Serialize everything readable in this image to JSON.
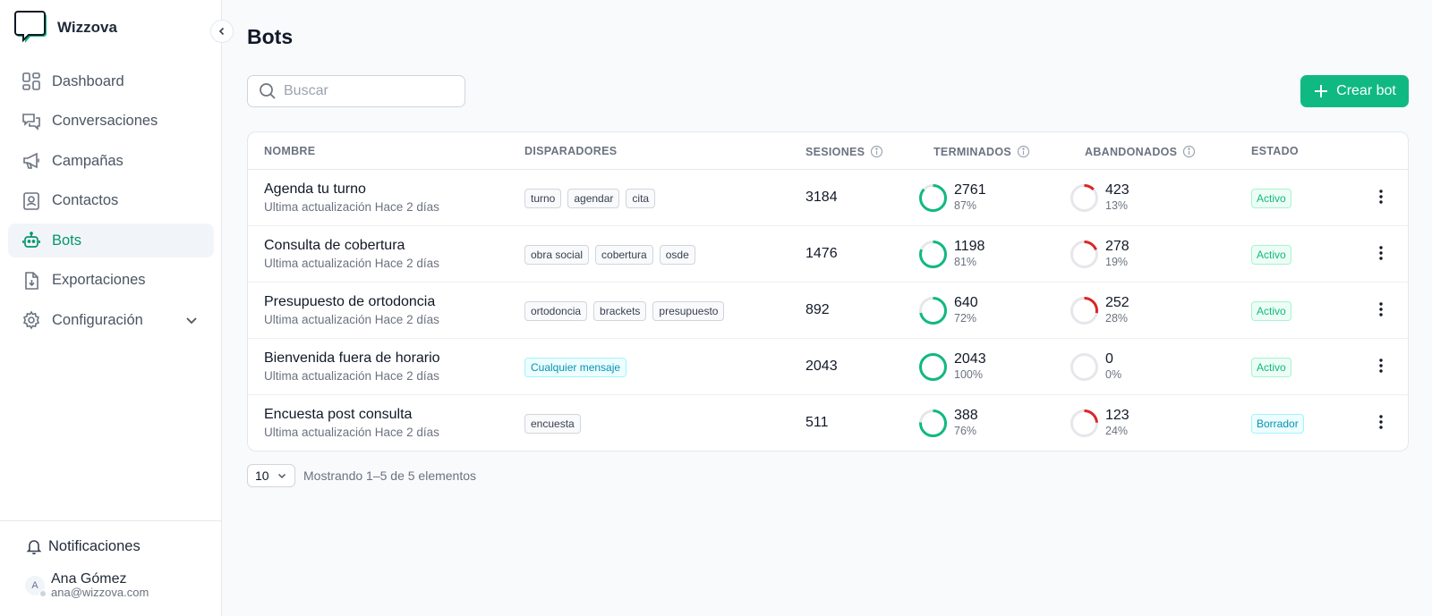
{
  "app": {
    "name": "Wizzova"
  },
  "sidebar": {
    "items": [
      {
        "label": "Dashboard",
        "icon": "dashboard-icon",
        "active": false
      },
      {
        "label": "Conversaciones",
        "icon": "chat-icon",
        "active": false
      },
      {
        "label": "Campañas",
        "icon": "megaphone-icon",
        "active": false
      },
      {
        "label": "Contactos",
        "icon": "contacts-icon",
        "active": false
      },
      {
        "label": "Bots",
        "icon": "bot-icon",
        "active": true
      },
      {
        "label": "Exportaciones",
        "icon": "export-icon",
        "active": false
      },
      {
        "label": "Configuración",
        "icon": "gear-icon",
        "active": false
      }
    ],
    "notifications_label": "Notificaciones",
    "user": {
      "initial": "A",
      "name": "Ana Gómez",
      "email": "ana@wizzova.com"
    }
  },
  "page": {
    "title": "Bots"
  },
  "search": {
    "placeholder": "Buscar"
  },
  "create_button": {
    "label": "Crear bot"
  },
  "table": {
    "headers": {
      "nombre": "NOMBRE",
      "disparadores": "DISPARADORES",
      "sesiones": "SESIONES",
      "terminados": "TERMINADOS",
      "abandonados": "ABANDONADOS",
      "estado": "ESTADO"
    },
    "rows": [
      {
        "name": "Agenda tu turno",
        "updated": "Ultima actualización Hace 2 días",
        "tags": [
          "turno",
          "agendar",
          "cita"
        ],
        "any": false,
        "sessions": "3184",
        "completed": "2761",
        "completed_pct": "87%",
        "completed_frac": 0.87,
        "abandoned": "423",
        "abandoned_pct": "13%",
        "abandoned_frac": 0.13,
        "status": "Activo",
        "status_kind": "activo"
      },
      {
        "name": "Consulta de cobertura",
        "updated": "Ultima actualización Hace 2 días",
        "tags": [
          "obra social",
          "cobertura",
          "osde"
        ],
        "any": false,
        "sessions": "1476",
        "completed": "1198",
        "completed_pct": "81%",
        "completed_frac": 0.81,
        "abandoned": "278",
        "abandoned_pct": "19%",
        "abandoned_frac": 0.19,
        "status": "Activo",
        "status_kind": "activo"
      },
      {
        "name": "Presupuesto de ortodoncia",
        "updated": "Ultima actualización Hace 2 días",
        "tags": [
          "ortodoncia",
          "brackets",
          "presupuesto"
        ],
        "any": false,
        "sessions": "892",
        "completed": "640",
        "completed_pct": "72%",
        "completed_frac": 0.72,
        "abandoned": "252",
        "abandoned_pct": "28%",
        "abandoned_frac": 0.28,
        "status": "Activo",
        "status_kind": "activo"
      },
      {
        "name": "Bienvenida fuera de horario",
        "updated": "Ultima actualización Hace 2 días",
        "tags": [
          "Cualquier mensaje"
        ],
        "any": true,
        "sessions": "2043",
        "completed": "2043",
        "completed_pct": "100%",
        "completed_frac": 1.0,
        "abandoned": "0",
        "abandoned_pct": "0%",
        "abandoned_frac": 0.0,
        "status": "Activo",
        "status_kind": "activo"
      },
      {
        "name": "Encuesta post consulta",
        "updated": "Ultima actualización Hace 2 días",
        "tags": [
          "encuesta"
        ],
        "any": false,
        "sessions": "511",
        "completed": "388",
        "completed_pct": "76%",
        "completed_frac": 0.76,
        "abandoned": "123",
        "abandoned_pct": "24%",
        "abandoned_frac": 0.24,
        "status": "Borrador",
        "status_kind": "borrador"
      }
    ]
  },
  "pagination": {
    "page_size": "10",
    "info": "Mostrando 1–5 de 5 elementos"
  },
  "colors": {
    "accent": "#10b981",
    "danger": "#dc2626",
    "ring_bg": "#e5e7eb"
  }
}
